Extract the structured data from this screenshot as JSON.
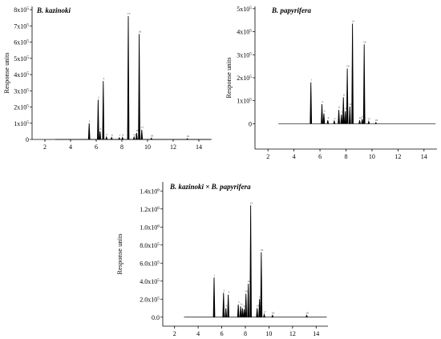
{
  "chart_data": [
    {
      "type": "line",
      "title": "B. kazinoki",
      "ylabel": "Response units",
      "xlabel": "",
      "xlim": [
        1,
        15
      ],
      "ylim": [
        0,
        8.2
      ],
      "x_ticks": [
        2,
        4,
        6,
        8,
        10,
        12,
        14
      ],
      "y_ticks": [
        {
          "v": 0,
          "base": "0",
          "exp": ""
        },
        {
          "v": 1,
          "base": "1x10",
          "exp": "5"
        },
        {
          "v": 2,
          "base": "2x10",
          "exp": "5"
        },
        {
          "v": 3,
          "base": "3x10",
          "exp": "5"
        },
        {
          "v": 4,
          "base": "4x10",
          "exp": "5"
        },
        {
          "v": 5,
          "base": "5x10",
          "exp": "5"
        },
        {
          "v": 6,
          "base": "6x10",
          "exp": "5"
        },
        {
          "v": 7,
          "base": "7x10",
          "exp": "5"
        },
        {
          "v": 8,
          "base": "8x10",
          "exp": "5"
        }
      ],
      "baseline": [
        2.8,
        14.9
      ],
      "peaks": [
        {
          "x": 5.45,
          "y": 1.0,
          "label": "1"
        },
        {
          "x": 6.15,
          "y": 2.45,
          "label": "2"
        },
        {
          "x": 6.3,
          "y": 0.5,
          "label": "3"
        },
        {
          "x": 6.55,
          "y": 3.6,
          "label": "4"
        },
        {
          "x": 6.8,
          "y": 0.15,
          "label": "5"
        },
        {
          "x": 7.2,
          "y": 0.12,
          "label": "6"
        },
        {
          "x": 7.8,
          "y": 0.1,
          "label": "7"
        },
        {
          "x": 8.05,
          "y": 0.12,
          "label": "8"
        },
        {
          "x": 8.5,
          "y": 7.6,
          "label": "13"
        },
        {
          "x": 8.95,
          "y": 0.15,
          "label": "14"
        },
        {
          "x": 9.15,
          "y": 0.4,
          "label": "15"
        },
        {
          "x": 9.35,
          "y": 6.5,
          "label": "16"
        },
        {
          "x": 9.55,
          "y": 0.6,
          "label": "17"
        },
        {
          "x": 10.3,
          "y": 0.08,
          "label": "18"
        },
        {
          "x": 13.1,
          "y": 0.05,
          "label": "19"
        }
      ]
    },
    {
      "type": "line",
      "title": "B. papyrifera",
      "ylabel": "Response units",
      "xlabel": "",
      "xlim": [
        1,
        15
      ],
      "ylim": [
        -1.1,
        5.1
      ],
      "x_ticks": [
        2,
        4,
        6,
        8,
        10,
        12,
        14
      ],
      "y_ticks": [
        {
          "v": 0,
          "base": "0",
          "exp": ""
        },
        {
          "v": 1,
          "base": "1x10",
          "exp": "5"
        },
        {
          "v": 2,
          "base": "2x10",
          "exp": "5"
        },
        {
          "v": 3,
          "base": "3x10",
          "exp": "5"
        },
        {
          "v": 4,
          "base": "4x10",
          "exp": "5"
        },
        {
          "v": 5,
          "base": "5x10",
          "exp": "5"
        }
      ],
      "baseline": [
        2.8,
        14.9
      ],
      "peaks": [
        {
          "x": 5.3,
          "y": 1.8,
          "label": "1"
        },
        {
          "x": 6.15,
          "y": 0.85,
          "label": "2"
        },
        {
          "x": 6.3,
          "y": 0.45,
          "label": "3"
        },
        {
          "x": 6.6,
          "y": 0.15,
          "label": "4"
        },
        {
          "x": 7.1,
          "y": 0.12,
          "label": "5"
        },
        {
          "x": 7.45,
          "y": 0.6,
          "label": "6"
        },
        {
          "x": 7.65,
          "y": 0.4,
          "label": "7"
        },
        {
          "x": 7.8,
          "y": 1.15,
          "label": "8"
        },
        {
          "x": 7.95,
          "y": 0.55,
          "label": "9"
        },
        {
          "x": 8.1,
          "y": 2.4,
          "label": "10"
        },
        {
          "x": 8.3,
          "y": 0.75,
          "label": "11"
        },
        {
          "x": 8.5,
          "y": 4.35,
          "label": "13"
        },
        {
          "x": 9.05,
          "y": 0.15,
          "label": "14"
        },
        {
          "x": 9.25,
          "y": 0.2,
          "label": "15"
        },
        {
          "x": 9.4,
          "y": 3.45,
          "label": "16"
        },
        {
          "x": 9.75,
          "y": 0.1,
          "label": "17"
        },
        {
          "x": 10.3,
          "y": 0.05,
          "label": "18"
        }
      ]
    },
    {
      "type": "line",
      "title": "B. kazinoki × B. papyrifera",
      "ylabel": "Response units",
      "xlabel": "",
      "xlim": [
        1,
        15
      ],
      "ylim": [
        -0.1,
        1.5
      ],
      "x_ticks": [
        2,
        4,
        6,
        8,
        10,
        12,
        14
      ],
      "y_ticks": [
        {
          "v": 0,
          "base": "0.0",
          "exp": ""
        },
        {
          "v": 0.2,
          "base": "2.0x10",
          "exp": "5"
        },
        {
          "v": 0.4,
          "base": "4.0x10",
          "exp": "5"
        },
        {
          "v": 0.6,
          "base": "6.0x10",
          "exp": "5"
        },
        {
          "v": 0.8,
          "base": "8.0x10",
          "exp": "5"
        },
        {
          "v": 1.0,
          "base": "1.0x10",
          "exp": "6"
        },
        {
          "v": 1.2,
          "base": "1.2x10",
          "exp": "6"
        },
        {
          "v": 1.4,
          "base": "1.4x10",
          "exp": "6"
        }
      ],
      "baseline": [
        2.8,
        14.9
      ],
      "peaks": [
        {
          "x": 5.35,
          "y": 0.44,
          "label": "1"
        },
        {
          "x": 6.15,
          "y": 0.27,
          "label": "2"
        },
        {
          "x": 6.35,
          "y": 0.1,
          "label": "3"
        },
        {
          "x": 6.55,
          "y": 0.25,
          "label": "4"
        },
        {
          "x": 7.4,
          "y": 0.14,
          "label": "5"
        },
        {
          "x": 7.6,
          "y": 0.12,
          "label": "6"
        },
        {
          "x": 7.75,
          "y": 0.1,
          "label": "7"
        },
        {
          "x": 7.9,
          "y": 0.09,
          "label": "8"
        },
        {
          "x": 8.05,
          "y": 0.26,
          "label": "10"
        },
        {
          "x": 8.25,
          "y": 0.37,
          "label": "12"
        },
        {
          "x": 8.45,
          "y": 1.24,
          "label": "13"
        },
        {
          "x": 9.0,
          "y": 0.1,
          "label": "14"
        },
        {
          "x": 9.2,
          "y": 0.2,
          "label": "15"
        },
        {
          "x": 9.35,
          "y": 0.72,
          "label": "16"
        },
        {
          "x": 9.6,
          "y": 0.03,
          "label": "17"
        },
        {
          "x": 10.3,
          "y": 0.02,
          "label": "18"
        },
        {
          "x": 13.2,
          "y": 0.02,
          "label": "19"
        }
      ]
    }
  ]
}
